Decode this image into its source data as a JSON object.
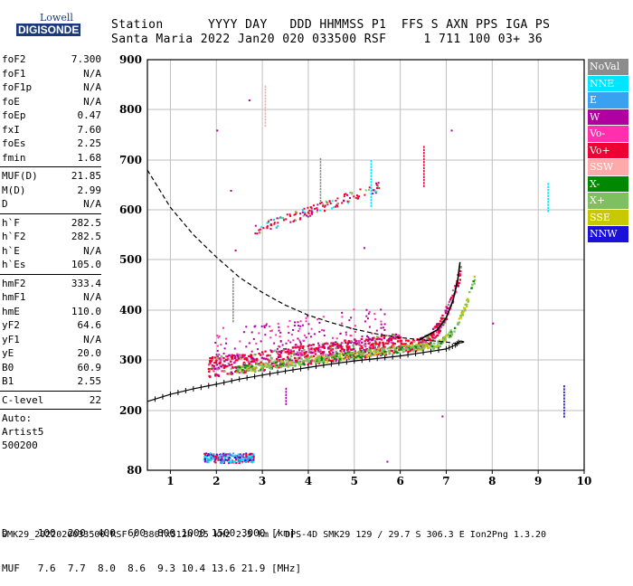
{
  "logo": {
    "line1": "Lowell",
    "line2": "DIGISONDE"
  },
  "header": {
    "line1": "Station      YYYY DAY   DDD HHMMSS P1  FFS S AXN PPS IGA PS",
    "line2": "Santa Maria 2022 Jan20 020 033500 RSF     1 711 100 03+ 36"
  },
  "params": {
    "group1": [
      {
        "name": "foF2",
        "value": "7.300"
      },
      {
        "name": "foF1",
        "value": "N/A"
      },
      {
        "name": "foF1p",
        "value": "N/A"
      },
      {
        "name": "foE",
        "value": "N/A"
      },
      {
        "name": "foEp",
        "value": "0.47"
      },
      {
        "name": "fxI",
        "value": "7.60"
      },
      {
        "name": "foEs",
        "value": "2.25"
      },
      {
        "name": "fmin",
        "value": "1.68"
      }
    ],
    "group2": [
      {
        "name": "MUF(D)",
        "value": "21.85"
      },
      {
        "name": "M(D)",
        "value": "2.99"
      },
      {
        "name": "D",
        "value": "N/A"
      }
    ],
    "group3": [
      {
        "name": "h`F",
        "value": "282.5"
      },
      {
        "name": "h`F2",
        "value": "282.5"
      },
      {
        "name": "h`E",
        "value": "N/A"
      },
      {
        "name": "h`Es",
        "value": "105.0"
      }
    ],
    "group4": [
      {
        "name": "hmF2",
        "value": "333.4"
      },
      {
        "name": "hmF1",
        "value": "N/A"
      },
      {
        "name": "hmE",
        "value": "110.0"
      },
      {
        "name": "yF2",
        "value": "64.6"
      },
      {
        "name": "yF1",
        "value": "N/A"
      },
      {
        "name": "yE",
        "value": "20.0"
      },
      {
        "name": "B0",
        "value": "60.9"
      },
      {
        "name": "B1",
        "value": "2.55"
      }
    ],
    "group5": [
      {
        "name": "C-level",
        "value": "22"
      }
    ],
    "auto": [
      "Auto:",
      "Artist5",
      "500200"
    ]
  },
  "legend": [
    {
      "label": "NoVal",
      "color": "#8c8c8c"
    },
    {
      "label": "NNE",
      "color": "#00e5ff"
    },
    {
      "label": "E",
      "color": "#3aa0f0"
    },
    {
      "label": "W",
      "color": "#b000a0"
    },
    {
      "label": "Vo-",
      "color": "#ff2fae"
    },
    {
      "label": "Vo+",
      "color": "#ee0033"
    },
    {
      "label": "SSW",
      "color": "#ffaaaa"
    },
    {
      "label": "X-",
      "color": "#008800"
    },
    {
      "label": "X+",
      "color": "#7fbf5f"
    },
    {
      "label": "SSE",
      "color": "#c8c800"
    },
    {
      "label": "NNW",
      "color": "#1a10d8"
    }
  ],
  "footer": {
    "line1": "D     100  200  400  600  800 1000 1500 3000 [km]",
    "line2": "MUF   7.6  7.7  8.0  8.6  9.3 10.4 13.6 21.9 [MHz]",
    "line3": "SMK29_2022020033500.RSF / 380fx512h 25 kHz 2.5 km / DPS-4D SMK29 129 / 29.7 S 306.3 E Ion2Png 1.3.20"
  },
  "chart_data": {
    "type": "scatter",
    "xlim": [
      0.5,
      10
    ],
    "ylim": [
      80,
      900
    ],
    "x_ticks": [
      1,
      2,
      3,
      4,
      5,
      6,
      7,
      8,
      9,
      10
    ],
    "y_ticks": [
      80,
      200,
      300,
      400,
      500,
      600,
      700,
      800,
      900
    ],
    "grid": true,
    "legend_placement": "right",
    "xlabel": "",
    "ylabel": "",
    "trace_clusters": [
      {
        "series": "Vo+",
        "x_range": [
          1.8,
          7.3
        ],
        "y_range": [
          270,
          490
        ]
      },
      {
        "series": "X+",
        "x_range": [
          2.2,
          7.6
        ],
        "y_range": [
          280,
          510
        ]
      },
      {
        "series": "W",
        "x_range": [
          1.9,
          5.5
        ],
        "y_range": [
          290,
          380
        ]
      },
      {
        "series": "NNE",
        "x_range": [
          1.7,
          2.8
        ],
        "y_range": [
          95,
          115
        ]
      },
      {
        "series": "Vo-",
        "x_range": [
          2.8,
          5.6
        ],
        "y_range": [
          540,
          660
        ]
      }
    ],
    "lines": [
      {
        "name": "o-trace profile",
        "style": "dashed",
        "points": [
          [
            0.5,
            680
          ],
          [
            1.0,
            605
          ],
          [
            1.5,
            550
          ],
          [
            2.0,
            505
          ],
          [
            2.5,
            465
          ],
          [
            3.0,
            435
          ],
          [
            3.5,
            410
          ],
          [
            4.0,
            390
          ],
          [
            4.5,
            375
          ],
          [
            5.0,
            362
          ],
          [
            5.5,
            352
          ],
          [
            6.0,
            345
          ],
          [
            6.5,
            340
          ],
          [
            7.0,
            336
          ],
          [
            7.2,
            333
          ]
        ]
      },
      {
        "name": "true height profile",
        "style": "solid-ticked",
        "points": [
          [
            0.5,
            218
          ],
          [
            1.0,
            232
          ],
          [
            1.5,
            243
          ],
          [
            2.0,
            252
          ],
          [
            2.5,
            262
          ],
          [
            3.0,
            270
          ],
          [
            3.5,
            278
          ],
          [
            4.0,
            285
          ],
          [
            4.5,
            292
          ],
          [
            5.0,
            298
          ],
          [
            5.5,
            303
          ],
          [
            6.0,
            308
          ],
          [
            6.5,
            315
          ],
          [
            7.0,
            322
          ],
          [
            7.2,
            330
          ],
          [
            7.3,
            338
          ]
        ]
      },
      {
        "name": "fitted trace",
        "style": "solid",
        "points": [
          [
            6.4,
            340
          ],
          [
            6.8,
            360
          ],
          [
            7.0,
            385
          ],
          [
            7.15,
            420
          ],
          [
            7.25,
            460
          ],
          [
            7.3,
            495
          ]
        ]
      }
    ]
  }
}
